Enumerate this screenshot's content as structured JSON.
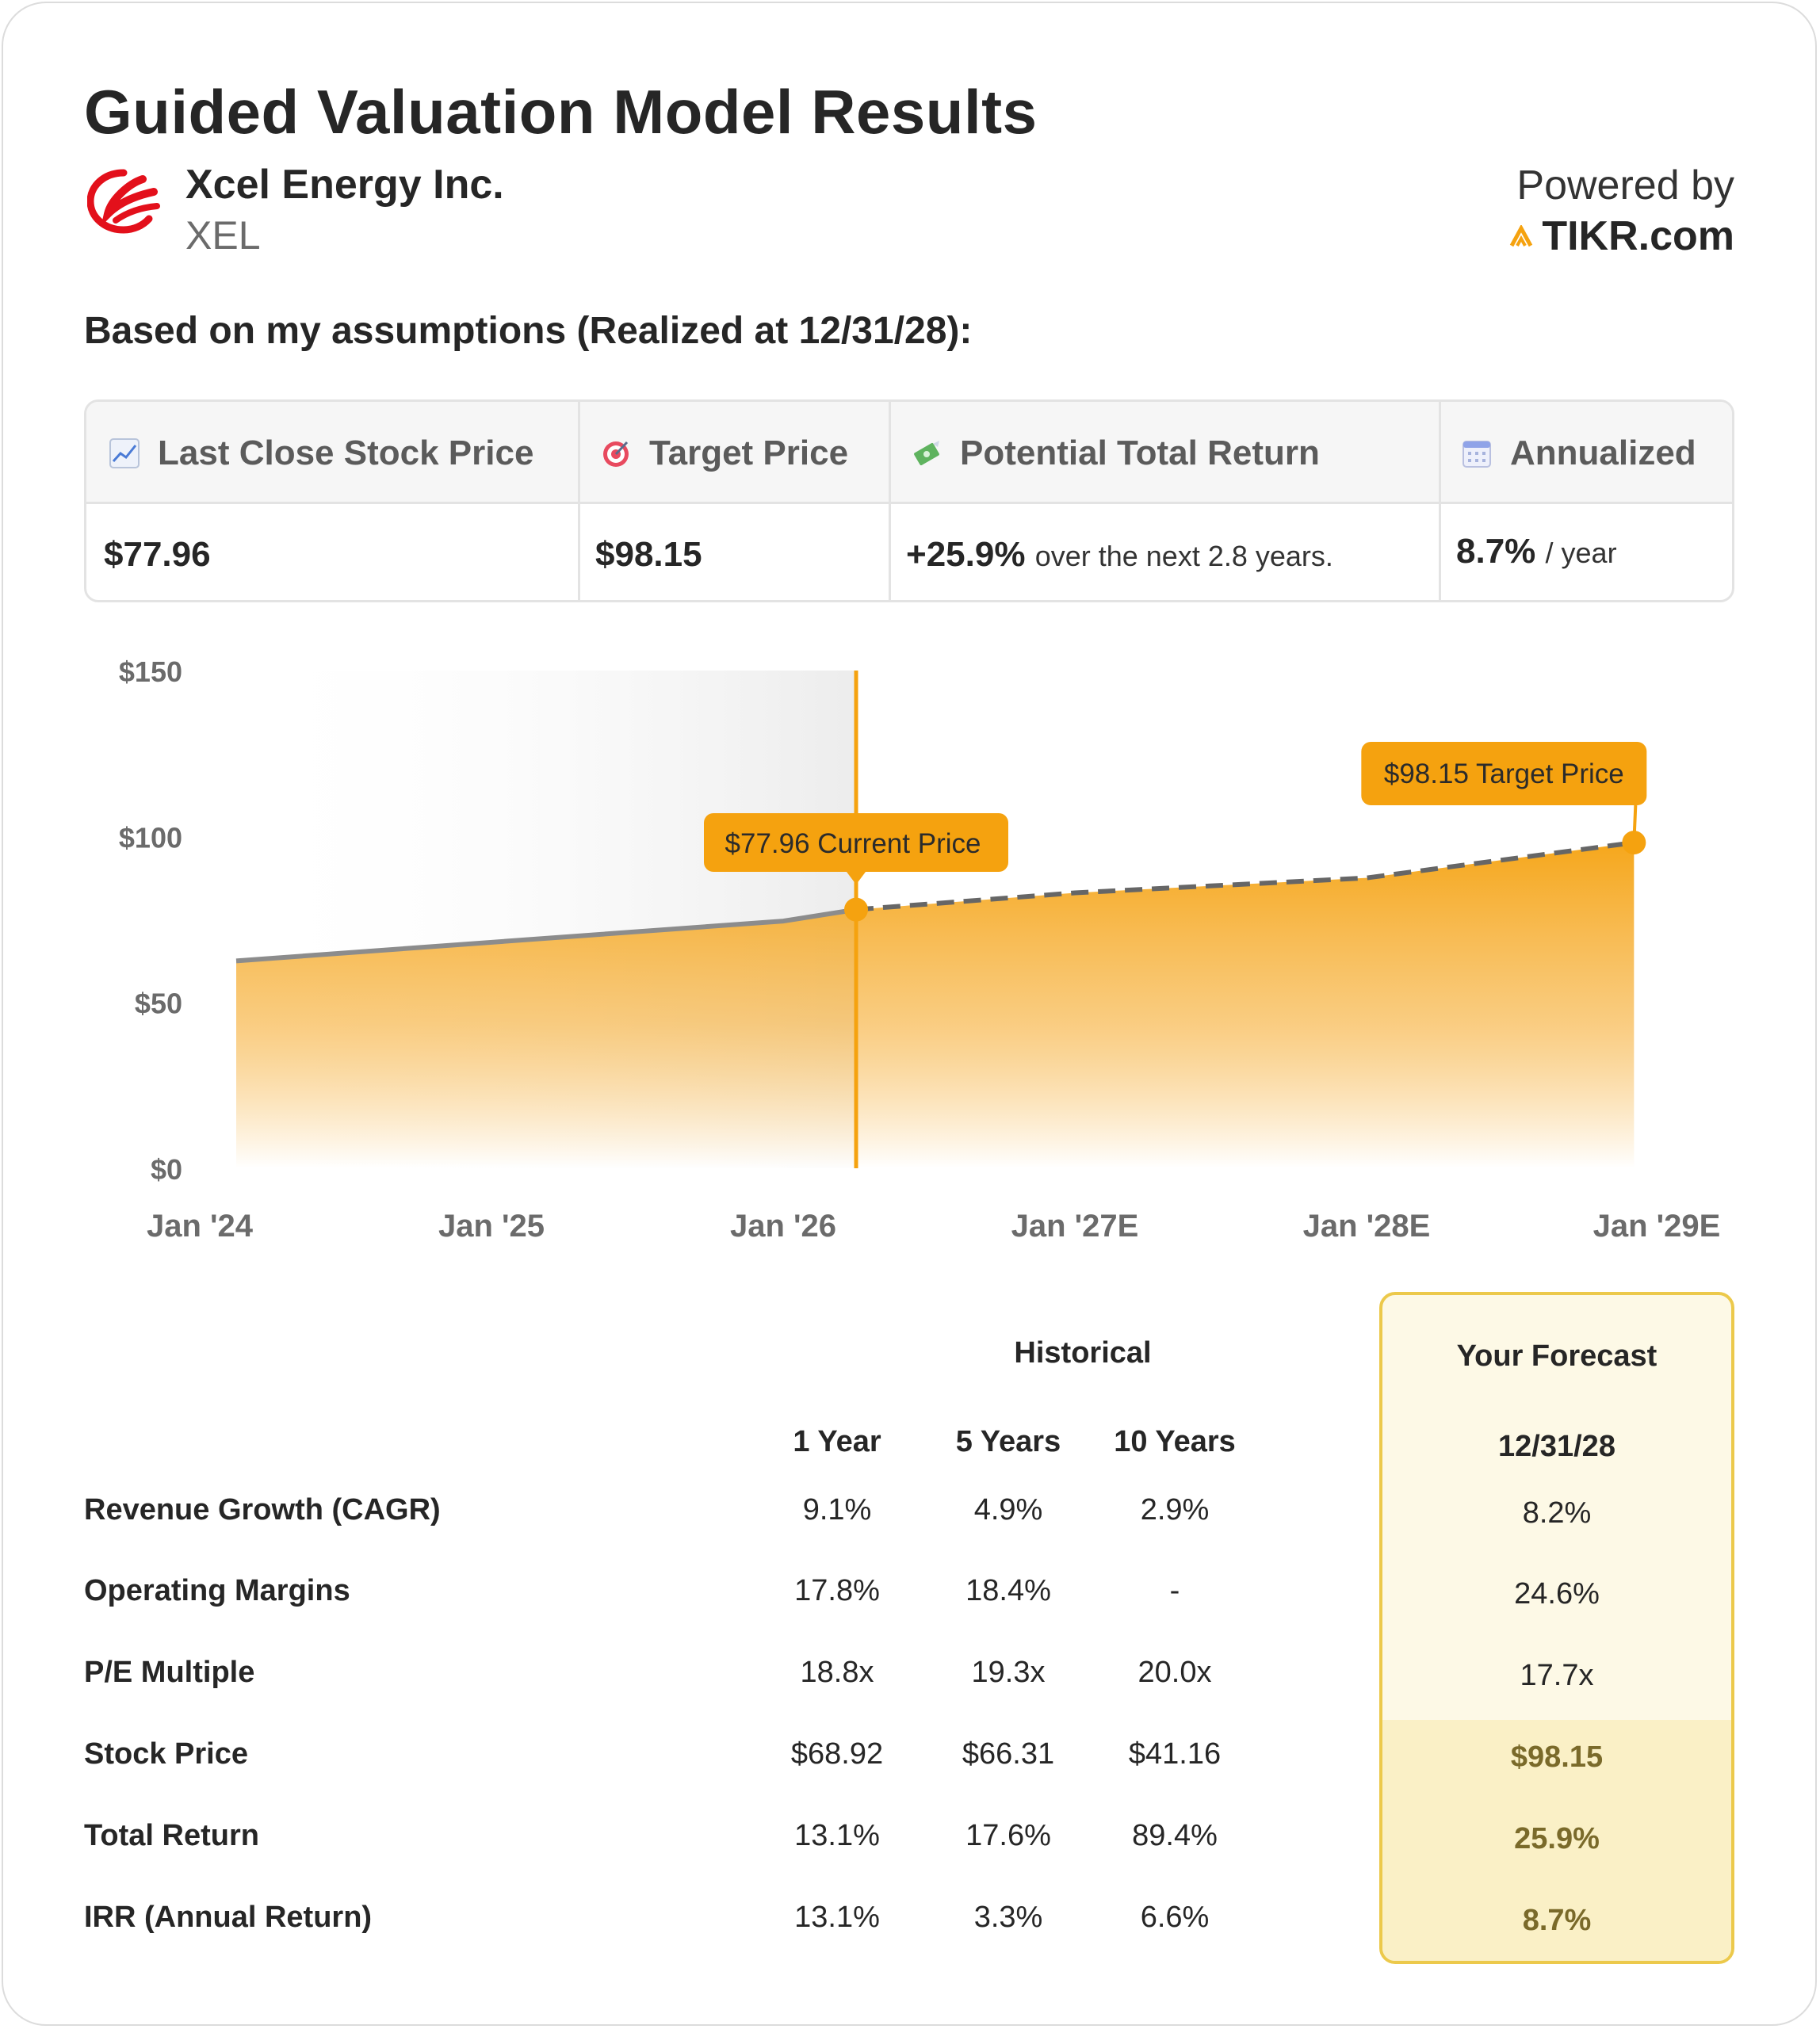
{
  "header": {
    "title": "Guided Valuation Model Results",
    "company_name": "Xcel Energy Inc.",
    "ticker": "XEL",
    "powered_by": "Powered by",
    "brand": "TIKR.com",
    "subtitle": "Based on my assumptions (Realized at 12/31/28):"
  },
  "stats": {
    "last_close_label": "Last Close Stock Price",
    "last_close_value": "$77.96",
    "target_label": "Target Price",
    "target_value": "$98.15",
    "return_label": "Potential Total Return",
    "return_value": "+25.9%",
    "return_suffix": "over the next 2.8 years.",
    "annualized_label": "Annualized",
    "annualized_value": "8.7%",
    "annualized_suffix": "/ year"
  },
  "chart_data": {
    "type": "area",
    "y_ticks": [
      "$150",
      "$100",
      "$50",
      "$0"
    ],
    "ylim": [
      0,
      150
    ],
    "x_ticks": [
      "Jan '24",
      "Jan '25",
      "Jan '26",
      "Jan '27E",
      "Jan '28E",
      "Jan '29E"
    ],
    "historical": [
      {
        "x": "2024-01",
        "y": 62.5
      },
      {
        "x": "2026-01",
        "y": 74.5
      },
      {
        "x": "2026-04",
        "y": 77.96
      }
    ],
    "forecast": [
      {
        "x": "2026-04",
        "y": 77.96
      },
      {
        "x": "2027-01",
        "y": 83.0
      },
      {
        "x": "2028-01",
        "y": 87.5
      },
      {
        "x": "2028-12",
        "y": 98.15
      }
    ],
    "annotations": {
      "current": "$77.96 Current Price",
      "target": "$98.15 Target Price"
    },
    "colors": {
      "accent": "#f5a20f",
      "historical_line": "#8c8c8c",
      "forecast_line": "#666666"
    }
  },
  "table": {
    "historical_header": "Historical",
    "forecast_header": "Your Forecast",
    "columns": [
      "1 Year",
      "5 Years",
      "10 Years"
    ],
    "forecast_date": "12/31/28",
    "rows": [
      {
        "label": "Revenue Growth (CAGR)",
        "values": [
          "9.1%",
          "4.9%",
          "2.9%"
        ],
        "forecast": "8.2%"
      },
      {
        "label": "Operating Margins",
        "values": [
          "17.8%",
          "18.4%",
          "-"
        ],
        "forecast": "24.6%"
      },
      {
        "label": "P/E Multiple",
        "values": [
          "18.8x",
          "19.3x",
          "20.0x"
        ],
        "forecast": "17.7x"
      },
      {
        "label": "Stock Price",
        "values": [
          "$68.92",
          "$66.31",
          "$41.16"
        ],
        "forecast": "$98.15"
      },
      {
        "label": "Total Return",
        "values": [
          "13.1%",
          "17.6%",
          "89.4%"
        ],
        "forecast": "25.9%"
      },
      {
        "label": "IRR (Annual Return)",
        "values": [
          "13.1%",
          "3.3%",
          "6.6%"
        ],
        "forecast": "8.7%"
      }
    ]
  }
}
